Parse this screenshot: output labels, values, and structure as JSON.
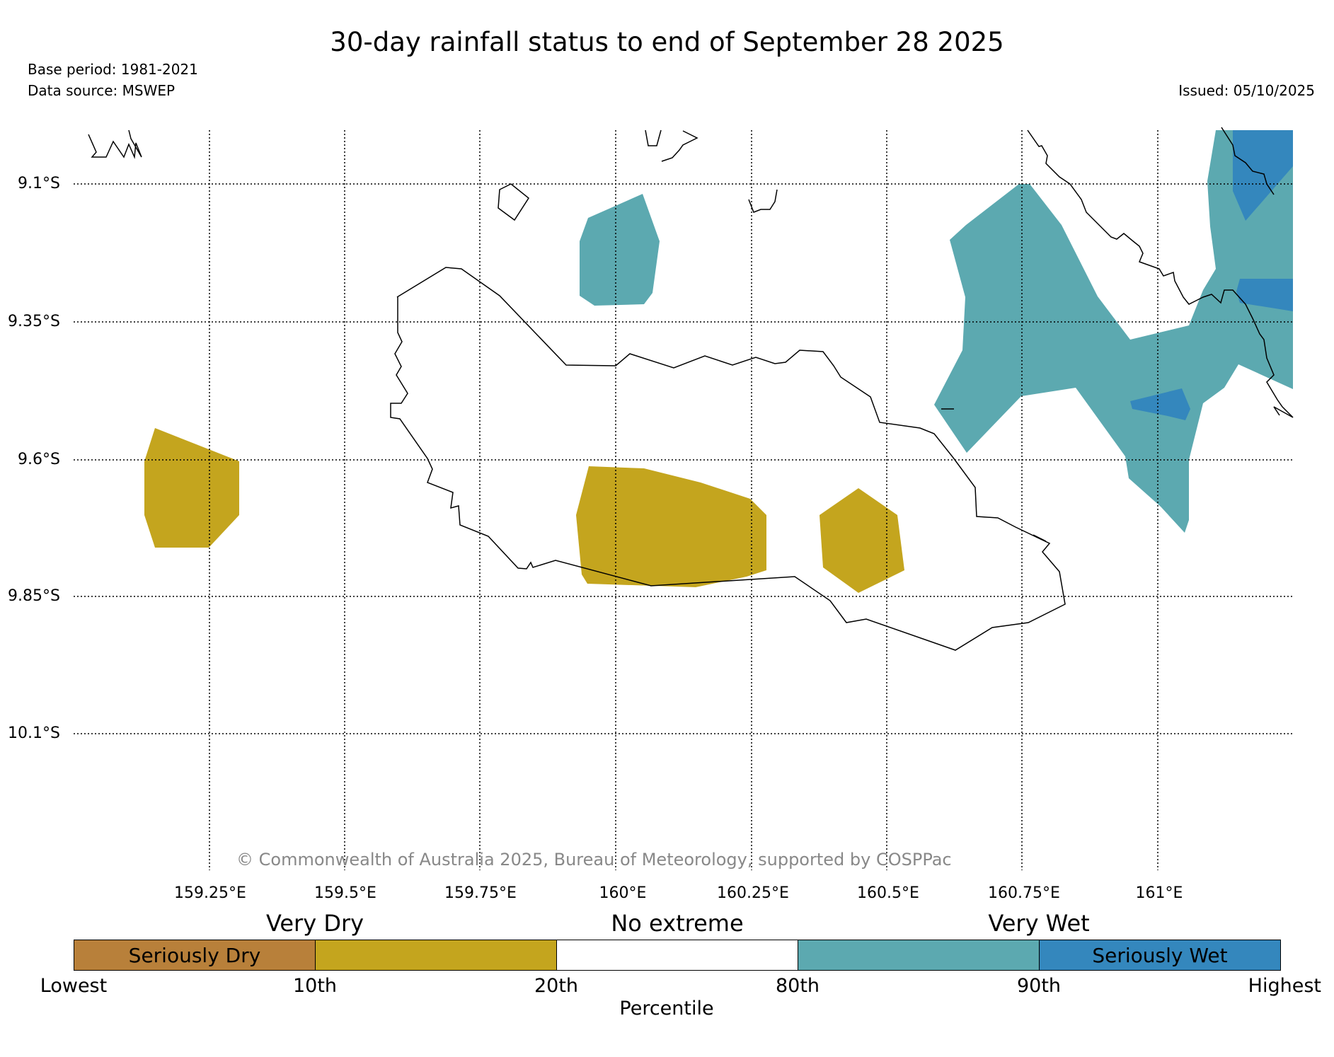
{
  "header": {
    "title": "30-day rainfall status to end of September 28 2025",
    "base_period": "Base period: 1981-2021",
    "data_source": "Data source: MSWEP",
    "issued": "Issued: 05/10/2025"
  },
  "map": {
    "latitude_labels": [
      "9.1°S",
      "9.35°S",
      "9.6°S",
      "9.85°S",
      "10.1°S"
    ],
    "longitude_labels": [
      "159.25°E",
      "159.5°E",
      "159.75°E",
      "160°E",
      "160.25°E",
      "160.5°E",
      "160.75°E",
      "161°E"
    ],
    "latitude_values": [
      -9.1,
      -9.35,
      -9.6,
      -9.85,
      -10.1
    ],
    "longitude_values": [
      159.25,
      159.5,
      159.75,
      160.0,
      160.25,
      160.5,
      160.75,
      161.0
    ],
    "extent": {
      "lon_min": 159.0,
      "lon_max": 161.25,
      "lat_min": -10.35,
      "lat_max": -9.0
    },
    "grid": true,
    "copyright": "© Commonwealth of Australia 2025, Bureau of Meteorology, supported by COSPPac",
    "rainfall_zones": [
      {
        "category": "very-dry",
        "note": "west of Guadalcanal, near 159.2°E 9.65°S"
      },
      {
        "category": "very-dry",
        "note": "central southern Guadalcanal, near 160.1°E 9.75°S"
      },
      {
        "category": "very-dry",
        "note": "southern Guadalcanal, near 160.45°E 9.75°S"
      },
      {
        "category": "very-wet",
        "note": "north of Guadalcanal, near 160.05°E 9.25°S"
      },
      {
        "category": "very-wet",
        "note": "east/north-east, 160.6°E–161.25°E"
      },
      {
        "category": "seriously-wet",
        "note": "north-east corner near 161.2°E 9.1°S"
      },
      {
        "category": "seriously-wet",
        "note": "near 161.2°E 9.3°S"
      },
      {
        "category": "seriously-wet",
        "note": "near 160.98°E 9.5°S"
      }
    ]
  },
  "legend": {
    "category_labels": {
      "very_dry": "Very Dry",
      "no_extreme": "No extreme",
      "very_wet": "Very Wet"
    },
    "segments": [
      {
        "label": "Seriously Dry",
        "color": "#b8803a"
      },
      {
        "label": "",
        "color": "#c4a51e"
      },
      {
        "label": "",
        "color": "#ffffff"
      },
      {
        "label": "",
        "color": "#5ca9b0"
      },
      {
        "label": "Seriously Wet",
        "color": "#3487bd"
      }
    ],
    "percentile_labels": [
      "Lowest",
      "10th",
      "20th",
      "80th",
      "90th",
      "Highest"
    ],
    "axis_label": "Percentile"
  },
  "colors": {
    "seriously_dry": "#b8803a",
    "very_dry": "#c4a51e",
    "no_extreme": "#ffffff",
    "very_wet": "#5ca9b0",
    "seriously_wet": "#3487bd"
  }
}
